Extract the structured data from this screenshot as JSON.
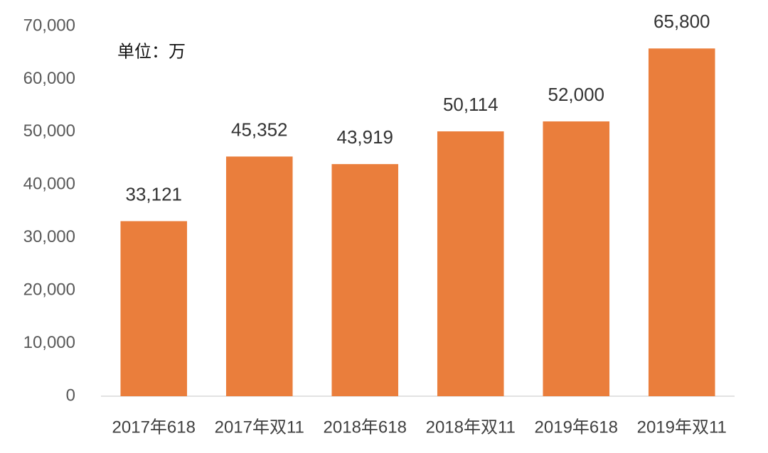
{
  "chart_data": {
    "type": "bar",
    "annotation": "单位：万",
    "categories": [
      "2017年618",
      "2017年双11",
      "2018年618",
      "2018年双11",
      "2019年618",
      "2019年双11"
    ],
    "values": [
      33121,
      45352,
      43919,
      50114,
      52000,
      65800
    ],
    "value_labels": [
      "33,121",
      "45,352",
      "43,919",
      "50,114",
      "52,000",
      "65,800"
    ],
    "color": "#ea7e3c",
    "ylim": [
      0,
      70000
    ],
    "yticks": [
      0,
      {
        "value": 10000,
        "label": "10,000"
      },
      {
        "value": 20000,
        "label": "20,000"
      },
      {
        "value": 30000,
        "label": "30,000"
      },
      {
        "value": 40000,
        "label": "40,000"
      },
      {
        "value": 50000,
        "label": "50,000"
      },
      {
        "value": 60000,
        "label": "60,000"
      },
      {
        "value": 70000,
        "label": "70,000"
      }
    ],
    "grid": false
  }
}
